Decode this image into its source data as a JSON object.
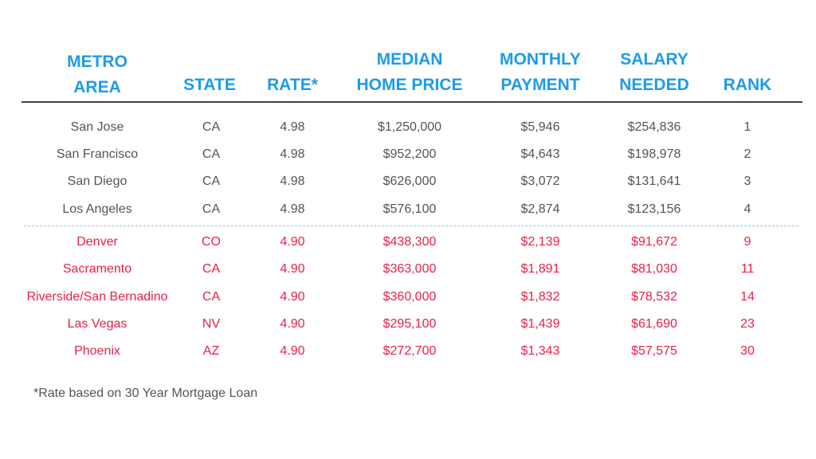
{
  "headers": {
    "metro": [
      "METRO",
      "AREA"
    ],
    "state": "STATE",
    "rate": "RATE*",
    "price": [
      "MEDIAN",
      "HOME PRICE"
    ],
    "payment": [
      "MONTHLY",
      "PAYMENT"
    ],
    "salary": [
      "SALARY",
      "NEEDED"
    ],
    "rank": "RANK"
  },
  "rows": [
    {
      "metro": "San Jose",
      "state": "CA",
      "rate": "4.98",
      "price": "$1,250,000",
      "payment": "$5,946",
      "salary": "$254,836",
      "rank": "1"
    },
    {
      "metro": "San Francisco",
      "state": "CA",
      "rate": "4.98",
      "price": "$952,200",
      "payment": "$4,643",
      "salary": "$198,978",
      "rank": "2"
    },
    {
      "metro": "San Diego",
      "state": "CA",
      "rate": "4.98",
      "price": "$626,000",
      "payment": "$3,072",
      "salary": "$131,641",
      "rank": "3"
    },
    {
      "metro": "Los Angeles",
      "state": "CA",
      "rate": "4.98",
      "price": "$576,100",
      "payment": "$2,874",
      "salary": "$123,156",
      "rank": "4"
    },
    {
      "metro": "Denver",
      "state": "CO",
      "rate": "4.90",
      "price": "$438,300",
      "payment": "$2,139",
      "salary": "$91,672",
      "rank": "9"
    },
    {
      "metro": "Sacramento",
      "state": "CA",
      "rate": "4.90",
      "price": "$363,000",
      "payment": "$1,891",
      "salary": "$81,030",
      "rank": "11"
    },
    {
      "metro": "Riverside/San Bernadino",
      "state": "CA",
      "rate": "4.90",
      "price": "$360,000",
      "payment": "$1,832",
      "salary": "$78,532",
      "rank": "14"
    },
    {
      "metro": "Las Vegas",
      "state": "NV",
      "rate": "4.90",
      "price": "$295,100",
      "payment": "$1,439",
      "salary": "$61,690",
      "rank": "23"
    },
    {
      "metro": "Phoenix",
      "state": "AZ",
      "rate": "4.90",
      "price": "$272,700",
      "payment": "$1,343",
      "salary": "$57,575",
      "rank": "30"
    }
  ],
  "colors": {
    "header": "#1e9be8",
    "group_1_text": "#545454",
    "group_2_text": "#e8204a",
    "divider": "#8fc3e3"
  },
  "footnote": "*Rate based on 30 Year Mortgage Loan"
}
